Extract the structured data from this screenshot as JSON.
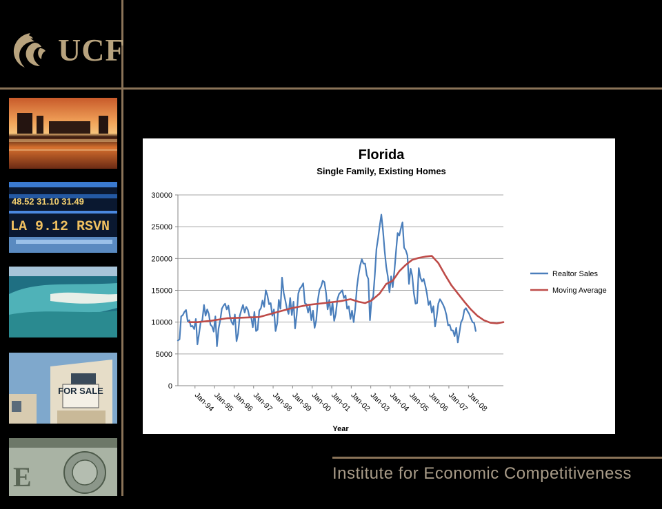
{
  "logo": {
    "text": "UCF"
  },
  "footer": {
    "title": "Institute for Economic Competitiveness"
  },
  "thumbnails": [
    {
      "name": "city-skyline-sunset-photo"
    },
    {
      "name": "stock-ticker-photo"
    },
    {
      "name": "aerial-coast-photo"
    },
    {
      "name": "house-for-sale-photo",
      "sign_text": "FOR SALE"
    },
    {
      "name": "dollar-bill-photo"
    }
  ],
  "colors": {
    "accent": "#8a7358",
    "realtor": "#4a7ebb",
    "moving_avg": "#be4b48"
  },
  "chart_data": {
    "type": "line",
    "title": "Florida",
    "subtitle": "Single Family, Existing Homes",
    "xlabel": "Year",
    "ylabel": "",
    "ylim": [
      0,
      30000
    ],
    "yticks": [
      "0",
      "5000",
      "10000",
      "15000",
      "20000",
      "25000",
      "30000"
    ],
    "xticks": [
      "Jan-94",
      "Jan-95",
      "Jan-96",
      "Jan-97",
      "Jan-98",
      "Jan-99",
      "Jan-00",
      "Jan-01",
      "Jan-02",
      "Jan-03",
      "Jan-04",
      "Jan-05",
      "Jan-06",
      "Jan-07",
      "Jan-08"
    ],
    "grid": true,
    "legend_position": "right",
    "series": [
      {
        "name": "Realtor Sales",
        "color": "#4a7ebb",
        "x_start": "Jan-94",
        "values": [
          7100,
          7300,
          10900,
          11100,
          11600,
          11900,
          10100,
          10300,
          9300,
          9400,
          8900,
          10500,
          6500,
          8200,
          10000,
          10300,
          12700,
          11000,
          12000,
          11300,
          9600,
          9300,
          8500,
          10900,
          6200,
          9000,
          10300,
          12100,
          12600,
          12900,
          12000,
          12600,
          10900,
          10000,
          9600,
          11200,
          7000,
          8200,
          11000,
          11900,
          12700,
          11500,
          12400,
          11900,
          10800,
          10800,
          9200,
          11600,
          8600,
          8800,
          11800,
          12200,
          13400,
          12400,
          15000,
          14200,
          12800,
          13000,
          11000,
          12000,
          8600,
          9800,
          13500,
          12100,
          17000,
          14600,
          13400,
          12100,
          11300,
          13800,
          11100,
          13200,
          9000,
          11200,
          14500,
          15300,
          15600,
          16100,
          13000,
          12800,
          11500,
          12600,
          10300,
          11800,
          9100,
          10300,
          13500,
          15100,
          15600,
          16500,
          16300,
          14600,
          12000,
          13500,
          11100,
          13100,
          10200,
          11300,
          13600,
          14400,
          14700,
          15000,
          13800,
          14200,
          12100,
          12500,
          10500,
          11800,
          10000,
          12200,
          15500,
          17500,
          18900,
          19900,
          19200,
          19200,
          17400,
          16800,
          10300,
          13500,
          14000,
          17500,
          21500,
          23200,
          25100,
          26900,
          24400,
          21300,
          18700,
          17200,
          14700,
          17200,
          15500,
          18000,
          21000,
          24000,
          23600,
          24700,
          25700,
          21700,
          21300,
          20500,
          16000,
          18400,
          17300,
          14500,
          12900,
          13000,
          18500,
          17000,
          16400,
          16800,
          15800,
          14500,
          12700,
          13300,
          11500,
          12500,
          9300,
          10800,
          12900,
          13600,
          13200,
          12700,
          12100,
          11100,
          9500,
          9600,
          8700,
          8700,
          7800,
          9100,
          6800,
          8400,
          10000,
          10500,
          11900,
          12200,
          11700,
          11300,
          10600,
          10000,
          9900,
          8600
        ]
      },
      {
        "name": "Moving Average",
        "color": "#be4b48",
        "x_start": "Jan-94",
        "points": [
          [
            7,
            10000
          ],
          [
            12,
            10000
          ],
          [
            20,
            10200
          ],
          [
            30,
            10600
          ],
          [
            40,
            10700
          ],
          [
            50,
            10800
          ],
          [
            60,
            11500
          ],
          [
            70,
            12200
          ],
          [
            80,
            12700
          ],
          [
            90,
            13000
          ],
          [
            100,
            13300
          ],
          [
            106,
            13600
          ],
          [
            111,
            13200
          ],
          [
            115,
            13000
          ],
          [
            119,
            13400
          ],
          [
            124,
            14500
          ],
          [
            128,
            16000
          ],
          [
            132,
            16500
          ],
          [
            136,
            18000
          ],
          [
            140,
            19000
          ],
          [
            144,
            19800
          ],
          [
            148,
            20100
          ],
          [
            152,
            20300
          ],
          [
            156,
            20400
          ],
          [
            160,
            19300
          ],
          [
            164,
            17500
          ],
          [
            168,
            15800
          ],
          [
            172,
            14500
          ],
          [
            176,
            13200
          ],
          [
            180,
            12000
          ],
          [
            184,
            11000
          ],
          [
            188,
            10300
          ],
          [
            192,
            9900
          ],
          [
            196,
            9800
          ],
          [
            200,
            10000
          ]
        ]
      }
    ]
  }
}
